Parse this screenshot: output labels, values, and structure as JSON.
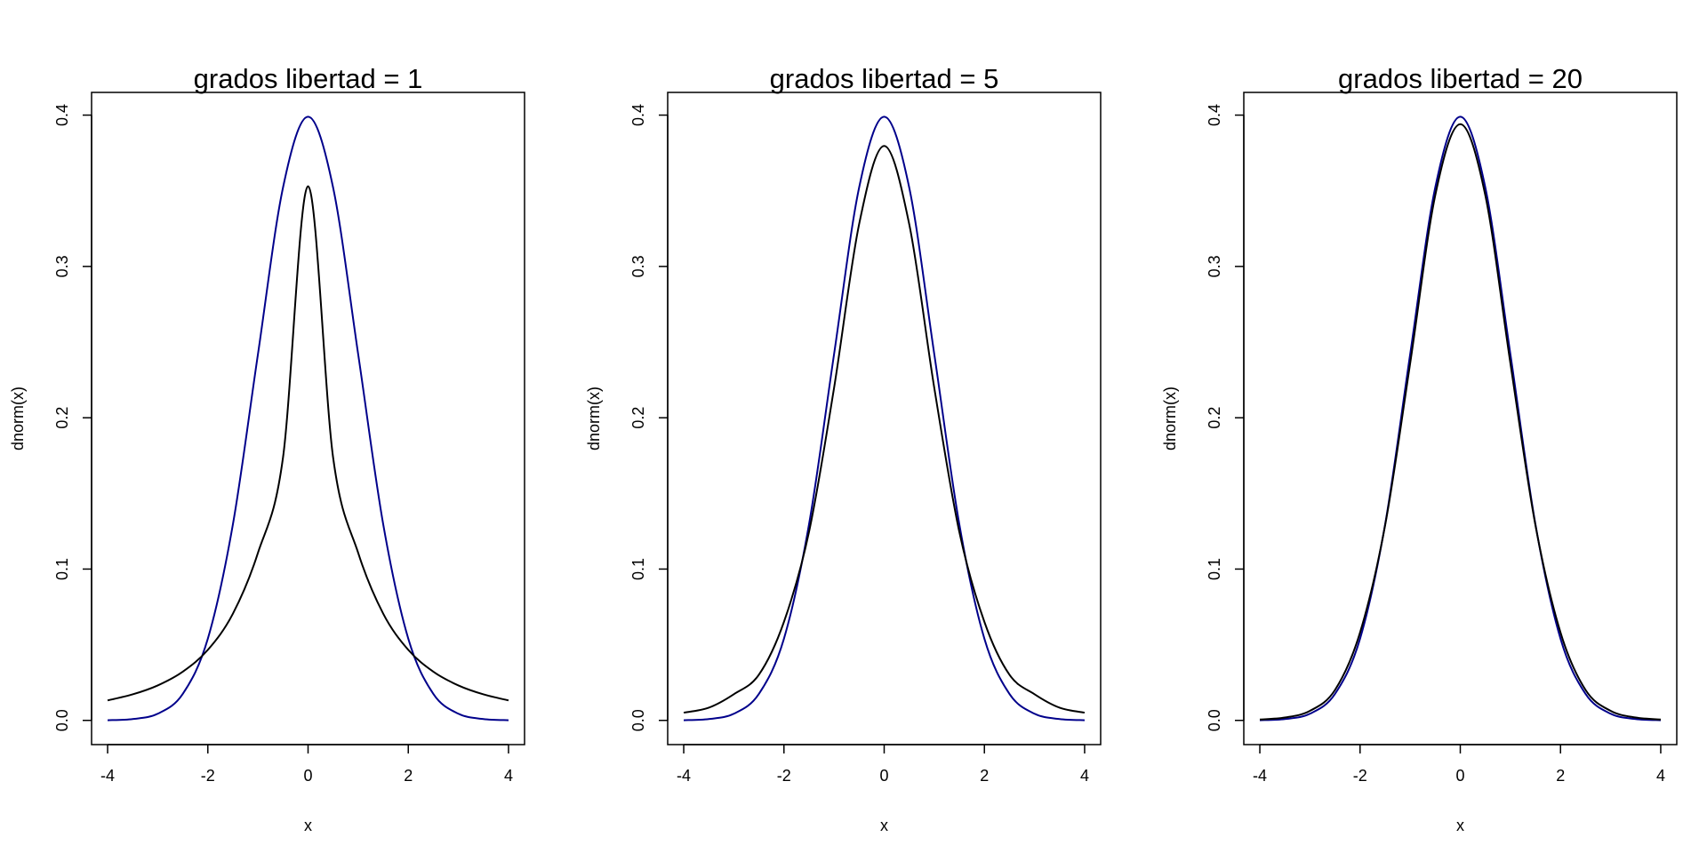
{
  "chart_data": [
    {
      "type": "line",
      "title": "grados libertad = 1",
      "xlabel": "x",
      "ylabel": "dnorm(x)",
      "xlim": [
        -4.32,
        4.32
      ],
      "ylim": [
        -0.016,
        0.415
      ],
      "xticks": [
        -4,
        -2,
        0,
        2,
        4
      ],
      "xtick_labels": [
        "-4",
        "-2",
        "0",
        "2",
        "4"
      ],
      "yticks": [
        0.0,
        0.1,
        0.2,
        0.3,
        0.4
      ],
      "ytick_labels": [
        "0.0",
        "0.1",
        "0.2",
        "0.3",
        "0.4"
      ],
      "grid": false,
      "series": [
        {
          "color": "#00008B",
          "x": [
            -4,
            -3.5,
            -3,
            -2.5,
            -2,
            -1.5,
            -1,
            -0.5,
            0,
            0.5,
            1,
            1.5,
            2,
            2.5,
            3,
            3.5,
            4
          ],
          "y": [
            0.0001,
            0.0009,
            0.0044,
            0.0175,
            0.054,
            0.1295,
            0.242,
            0.3521,
            0.3989,
            0.3521,
            0.242,
            0.1295,
            0.054,
            0.0175,
            0.0044,
            0.0009,
            0.0001
          ]
        },
        {
          "color": "#000000",
          "x": [
            -4,
            -3.5,
            -3,
            -2.5,
            -2,
            -1.5,
            -1,
            -0.5,
            0,
            0.5,
            1,
            1.5,
            2,
            2.5,
            3,
            3.5,
            4
          ],
          "y": [
            0.0132,
            0.0172,
            0.0231,
            0.0322,
            0.0466,
            0.0705,
            0.1107,
            0.1737,
            0.353,
            0.1737,
            0.1107,
            0.0705,
            0.0466,
            0.0322,
            0.0231,
            0.0172,
            0.0132
          ]
        }
      ]
    },
    {
      "type": "line",
      "title": "grados libertad = 5",
      "xlabel": "x",
      "ylabel": "dnorm(x)",
      "xlim": [
        -4.32,
        4.32
      ],
      "ylim": [
        -0.016,
        0.415
      ],
      "xticks": [
        -4,
        -2,
        0,
        2,
        4
      ],
      "xtick_labels": [
        "-4",
        "-2",
        "0",
        "2",
        "4"
      ],
      "yticks": [
        0.0,
        0.1,
        0.2,
        0.3,
        0.4
      ],
      "ytick_labels": [
        "0.0",
        "0.1",
        "0.2",
        "0.3",
        "0.4"
      ],
      "grid": false,
      "series": [
        {
          "color": "#00008B",
          "x": [
            -4,
            -3.5,
            -3,
            -2.5,
            -2,
            -1.5,
            -1,
            -0.5,
            0,
            0.5,
            1,
            1.5,
            2,
            2.5,
            3,
            3.5,
            4
          ],
          "y": [
            0.0001,
            0.0009,
            0.0044,
            0.0175,
            0.054,
            0.1295,
            0.242,
            0.3521,
            0.3989,
            0.3521,
            0.242,
            0.1295,
            0.054,
            0.0175,
            0.0044,
            0.0009,
            0.0001
          ]
        },
        {
          "color": "#000000",
          "x": [
            -4,
            -3.5,
            -3,
            -2.5,
            -2,
            -1.5,
            -1,
            -0.5,
            0,
            0.5,
            1,
            1.5,
            2,
            2.5,
            3,
            3.5,
            4
          ],
          "y": [
            0.0051,
            0.0084,
            0.0173,
            0.0302,
            0.0651,
            0.1245,
            0.2197,
            0.3279,
            0.3796,
            0.3279,
            0.2197,
            0.1245,
            0.0651,
            0.0302,
            0.0173,
            0.0084,
            0.0051
          ]
        }
      ]
    },
    {
      "type": "line",
      "title": "grados libertad = 20",
      "xlabel": "x",
      "ylabel": "dnorm(x)",
      "xlim": [
        -4.32,
        4.32
      ],
      "ylim": [
        -0.016,
        0.415
      ],
      "xticks": [
        -4,
        -2,
        0,
        2,
        4
      ],
      "xtick_labels": [
        "-4",
        "-2",
        "0",
        "2",
        "4"
      ],
      "yticks": [
        0.0,
        0.1,
        0.2,
        0.3,
        0.4
      ],
      "ytick_labels": [
        "0.0",
        "0.1",
        "0.2",
        "0.3",
        "0.4"
      ],
      "grid": false,
      "series": [
        {
          "color": "#00008B",
          "x": [
            -4,
            -3.5,
            -3,
            -2.5,
            -2,
            -1.5,
            -1,
            -0.5,
            0,
            0.5,
            1,
            1.5,
            2,
            2.5,
            3,
            3.5,
            4
          ],
          "y": [
            0.0001,
            0.0009,
            0.0044,
            0.0175,
            0.054,
            0.1295,
            0.242,
            0.3521,
            0.3989,
            0.3521,
            0.242,
            0.1295,
            0.054,
            0.0175,
            0.0044,
            0.0009,
            0.0001
          ]
        },
        {
          "color": "#000000",
          "x": [
            -4,
            -3.5,
            -3,
            -2.5,
            -2,
            -1.5,
            -1,
            -0.5,
            0,
            0.5,
            1,
            1.5,
            2,
            2.5,
            3,
            3.5,
            4
          ],
          "y": [
            0.0006,
            0.0019,
            0.0063,
            0.0201,
            0.0581,
            0.1289,
            0.236,
            0.3469,
            0.394,
            0.3469,
            0.236,
            0.1289,
            0.0581,
            0.0201,
            0.0063,
            0.0019,
            0.0006
          ]
        }
      ]
    }
  ]
}
